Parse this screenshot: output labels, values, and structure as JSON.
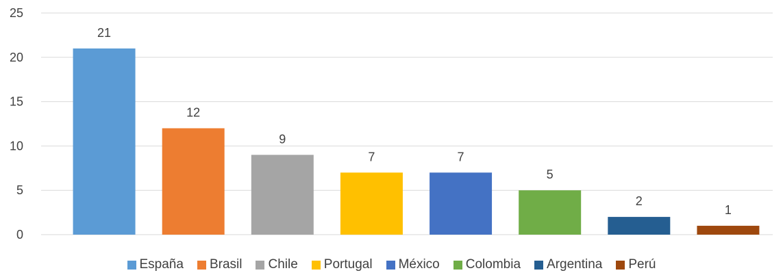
{
  "chart_data": {
    "type": "bar",
    "categories": [
      "España",
      "Brasil",
      "Chile",
      "Portugal",
      "México",
      "Colombia",
      "Argentina",
      "Perú"
    ],
    "values": [
      21,
      12,
      9,
      7,
      7,
      5,
      2,
      1
    ],
    "colors": [
      "#5b9bd5",
      "#ed7d31",
      "#a5a5a5",
      "#ffc000",
      "#4472c4",
      "#70ad47",
      "#255e91",
      "#9e480e"
    ],
    "ylim": [
      0,
      25
    ],
    "yticks": [
      "0",
      "5",
      "10",
      "15",
      "20",
      "25"
    ],
    "data_labels": [
      "21",
      "12",
      "9",
      "7",
      "7",
      "5",
      "2",
      "1"
    ],
    "grid": true,
    "legend_position": "bottom"
  }
}
